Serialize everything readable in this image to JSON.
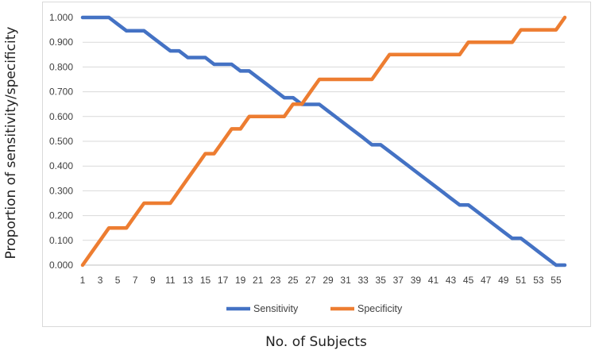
{
  "chart_data": {
    "type": "line",
    "title": "",
    "xlabel": "No. of Subjects",
    "ylabel": "Proportion of sensitivity/specificity",
    "x_range": [
      1,
      56
    ],
    "x_tick_labels": [
      "1",
      "3",
      "5",
      "7",
      "9",
      "11",
      "13",
      "15",
      "17",
      "19",
      "21",
      "23",
      "25",
      "27",
      "29",
      "31",
      "33",
      "35",
      "37",
      "39",
      "41",
      "43",
      "45",
      "47",
      "49",
      "51",
      "53",
      "55"
    ],
    "ylim": [
      0,
      1
    ],
    "y_tick_labels": [
      "0.000",
      "0.100",
      "0.200",
      "0.300",
      "0.400",
      "0.500",
      "0.600",
      "0.700",
      "0.800",
      "0.900",
      "1.000"
    ],
    "y_ticks": [
      0,
      0.1,
      0.2,
      0.3,
      0.4,
      0.5,
      0.6,
      0.7,
      0.8,
      0.9,
      1.0
    ],
    "grid": true,
    "legend_position": "bottom",
    "x": [
      1,
      2,
      3,
      4,
      5,
      6,
      7,
      8,
      9,
      10,
      11,
      12,
      13,
      14,
      15,
      16,
      17,
      18,
      19,
      20,
      21,
      22,
      23,
      24,
      25,
      26,
      27,
      28,
      29,
      30,
      31,
      32,
      33,
      34,
      35,
      36,
      37,
      38,
      39,
      40,
      41,
      42,
      43,
      44,
      45,
      46,
      47,
      48,
      49,
      50,
      51,
      52,
      53,
      54,
      55,
      56
    ],
    "series": [
      {
        "name": "Sensitivity",
        "color": "#4472C4",
        "values": [
          1.0,
          1.0,
          1.0,
          1.0,
          0.973,
          0.946,
          0.946,
          0.946,
          0.919,
          0.892,
          0.865,
          0.865,
          0.838,
          0.838,
          0.838,
          0.811,
          0.811,
          0.811,
          0.784,
          0.784,
          0.757,
          0.73,
          0.703,
          0.676,
          0.676,
          0.649,
          0.649,
          0.649,
          0.622,
          0.595,
          0.568,
          0.541,
          0.514,
          0.486,
          0.486,
          0.459,
          0.432,
          0.405,
          0.378,
          0.351,
          0.324,
          0.297,
          0.27,
          0.243,
          0.243,
          0.216,
          0.189,
          0.162,
          0.135,
          0.108,
          0.108,
          0.081,
          0.054,
          0.027,
          0.0,
          0.0
        ]
      },
      {
        "name": "Specificity",
        "color": "#ED7D31",
        "values": [
          0.0,
          0.05,
          0.1,
          0.15,
          0.15,
          0.15,
          0.2,
          0.25,
          0.25,
          0.25,
          0.25,
          0.3,
          0.35,
          0.4,
          0.45,
          0.45,
          0.5,
          0.55,
          0.55,
          0.6,
          0.6,
          0.6,
          0.6,
          0.6,
          0.65,
          0.65,
          0.7,
          0.75,
          0.75,
          0.75,
          0.75,
          0.75,
          0.75,
          0.75,
          0.8,
          0.85,
          0.85,
          0.85,
          0.85,
          0.85,
          0.85,
          0.85,
          0.85,
          0.85,
          0.9,
          0.9,
          0.9,
          0.9,
          0.9,
          0.9,
          0.95,
          0.95,
          0.95,
          0.95,
          0.95,
          1.0
        ]
      }
    ]
  }
}
